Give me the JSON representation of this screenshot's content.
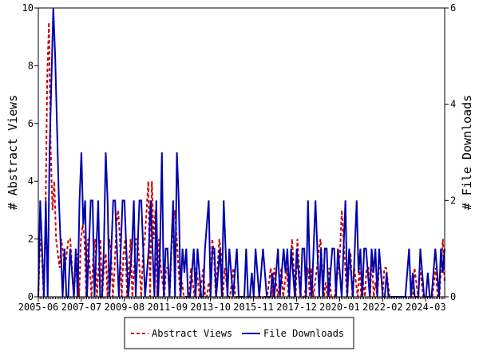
{
  "chart_data": {
    "type": "line",
    "title": "",
    "xlabel": "",
    "ylabel": "# Abstract Views",
    "y2label": "# File Downloads",
    "ylim": [
      0,
      10
    ],
    "y2lim": [
      0,
      6
    ],
    "yticks": [
      "0",
      "2",
      "4",
      "6",
      "8",
      "10"
    ],
    "y2ticks": [
      "0",
      "2",
      "4",
      "6"
    ],
    "xticks": [
      "2005-06",
      "2007-07",
      "2009-08",
      "2011-09",
      "2013-10",
      "2015-11",
      "2017-12",
      "2020-01",
      "2022-02",
      "2024-03"
    ],
    "x_start": "2005-06",
    "x_end": "2025-02",
    "grid": false,
    "legend_position": "bottom",
    "series": [
      {
        "name": "Abstract Views",
        "axis": "left",
        "color": "#cc0000",
        "style": "dashed",
        "values": [
          0,
          2,
          1.5,
          0,
          2.5,
          7.5,
          9.5,
          5,
          3,
          4,
          2,
          1.5,
          1,
          2,
          1.5,
          1,
          1.5,
          2,
          2,
          1,
          0,
          1,
          1.5,
          0,
          2,
          2.5,
          2,
          0,
          2,
          1,
          0,
          1.5,
          2,
          0,
          1,
          2,
          0,
          1,
          1.5,
          0,
          2,
          1.5,
          0,
          1,
          2.5,
          3,
          2,
          0,
          1.5,
          2,
          0,
          1,
          2,
          0,
          1,
          2,
          2,
          1,
          0,
          1.5,
          2,
          3,
          4,
          0,
          4,
          2,
          3,
          0,
          2,
          1,
          0.5,
          0,
          1,
          1,
          0,
          1.5,
          2.5,
          3,
          2,
          1,
          0,
          0.5,
          0,
          0,
          0,
          0,
          1,
          0.5,
          0,
          1,
          0.5,
          0,
          0.5,
          1,
          0,
          0,
          0.5,
          0,
          2,
          1.5,
          0,
          1,
          2,
          1.5,
          0,
          1,
          0.5,
          0,
          0,
          0.5,
          1,
          0,
          0,
          0,
          0,
          0,
          0,
          0,
          0,
          0,
          0,
          0,
          0,
          0,
          0,
          0,
          0,
          0,
          0,
          0,
          0.5,
          1,
          0,
          1,
          0.5,
          0,
          0.5,
          1,
          0,
          0.5,
          1,
          0,
          1,
          2,
          1,
          0,
          2,
          1,
          0,
          0,
          0,
          0.5,
          1,
          0,
          1,
          0,
          0.5,
          1,
          1.5,
          2,
          1,
          0,
          0.5,
          0,
          1,
          0,
          0,
          0,
          0.5,
          1,
          1.5,
          3,
          2,
          1,
          0,
          1,
          1.5,
          0,
          1,
          0.5,
          0,
          1,
          0,
          0.5,
          0,
          1,
          1,
          0,
          1.5,
          0,
          0.5,
          0,
          1,
          1,
          0,
          1,
          1,
          0.5,
          0,
          0,
          0,
          0,
          0,
          0,
          0,
          0,
          0,
          0,
          0,
          0,
          0,
          0,
          1,
          0.5,
          0,
          1,
          0.5,
          0,
          0,
          0,
          0,
          0,
          0,
          0.5,
          1,
          0,
          0,
          1,
          2,
          0.5
        ]
      },
      {
        "name": "File Downloads",
        "axis": "right",
        "color": "#0000aa",
        "style": "solid",
        "values": [
          0,
          2,
          1,
          0,
          2,
          0,
          3,
          4.5,
          6,
          5,
          3.5,
          2,
          1,
          0,
          1,
          0,
          0,
          1,
          0.5,
          0,
          1,
          0,
          2,
          3,
          1.5,
          2,
          0,
          1,
          2,
          2,
          0,
          1,
          2,
          0,
          0,
          1,
          3,
          2,
          0,
          1,
          2,
          2,
          1,
          0,
          1,
          2,
          2,
          1,
          0,
          0.5,
          1,
          2,
          0,
          1,
          2,
          2,
          1,
          0,
          0.5,
          1,
          2,
          1,
          0,
          2,
          0,
          1,
          3,
          0,
          1,
          1,
          0,
          1,
          2,
          0,
          3,
          2,
          0,
          1,
          0.5,
          1,
          0,
          0,
          0.5,
          1,
          0,
          1,
          0.5,
          0,
          0,
          1,
          1.5,
          2,
          0,
          1,
          1,
          0,
          0.5,
          1,
          0,
          2,
          1,
          0,
          1,
          0.5,
          0,
          0.5,
          1,
          0,
          0,
          0,
          0,
          1,
          0,
          0,
          0.5,
          0,
          1,
          0.5,
          0,
          0.5,
          1,
          0.5,
          0,
          0,
          0,
          0.5,
          0,
          0.5,
          1,
          0,
          0.5,
          1,
          0.5,
          1,
          0,
          1,
          0.5,
          0,
          1,
          0.5,
          0,
          1,
          1,
          0,
          2,
          0.5,
          0,
          1,
          2,
          1,
          0,
          1,
          0,
          1,
          1,
          0,
          0.5,
          1,
          1,
          0,
          1,
          0.5,
          0,
          1,
          2,
          0,
          1,
          0.5,
          0,
          1,
          2,
          0.5,
          1,
          0,
          1,
          1,
          0.5,
          0,
          1,
          0.5,
          1,
          0,
          1,
          0.5,
          0,
          0,
          0.5,
          0,
          0,
          0,
          0,
          0,
          0,
          0,
          0,
          0,
          0,
          0.5,
          1,
          0,
          0.5,
          0,
          0,
          0,
          1,
          0.5,
          0,
          0,
          0.5,
          0,
          0,
          0.5,
          1,
          0.5,
          0,
          1,
          0.5,
          1
        ]
      }
    ]
  }
}
